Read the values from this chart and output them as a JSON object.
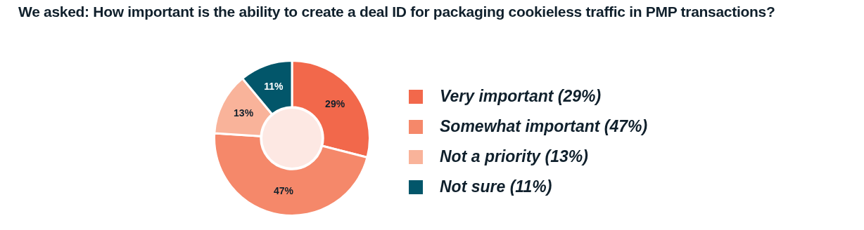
{
  "chart_data": {
    "type": "donut",
    "title": "We asked: How important is the ability to create a deal ID for packaging cookieless traffic in PMP transactions?",
    "categories": [
      "Very important (29%)",
      "Somewhat important (47%)",
      "Not a priority (13%)",
      "Not sure (11%)"
    ],
    "values": [
      29,
      47,
      13,
      11
    ],
    "colors": [
      "#f2684b",
      "#f5886a",
      "#f9b39a",
      "#02566a"
    ],
    "value_labels": [
      "29%",
      "47%",
      "13%",
      "11%"
    ],
    "legend": "right"
  }
}
